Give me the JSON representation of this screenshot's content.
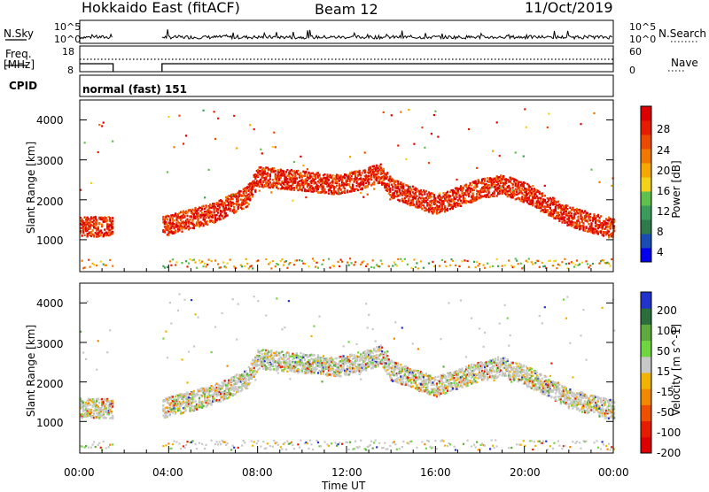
{
  "header": {
    "station": "Hokkaido East (fitACF)",
    "beam": "Beam 12",
    "date": "11/Oct/2019"
  },
  "top_panels": {
    "nsky_label": "N.Sky",
    "nsky_ticks": [
      "10^5",
      "10^0"
    ],
    "nsearch_ticks": [
      "10^5",
      "10^0"
    ],
    "nsearch_label": "N.Search",
    "freq_label_1": "Freq.",
    "freq_label_2": "[MHz]",
    "freq_ticks": [
      "18",
      "8"
    ],
    "nave_ticks": [
      "60",
      "0"
    ],
    "nave_label": "Nave",
    "cpid_label": "CPID",
    "cpid_value": "normal (fast) 151"
  },
  "chart_data": [
    {
      "type": "heatmap",
      "title": "",
      "ylabel": "Slant Range [km]",
      "xlabel": "Time UT",
      "yticks": [
        "4000",
        "3000",
        "2000",
        "1000"
      ],
      "xticks": [
        "00:00",
        "04:00",
        "08:00",
        "12:00",
        "16:00",
        "20:00",
        "00:00"
      ],
      "ylim": [
        200,
        4500
      ],
      "xlim_hours": [
        0,
        24
      ],
      "colorbar": {
        "label": "Power [dB]",
        "ticks": [
          "28",
          "24",
          "20",
          "16",
          "12",
          "8",
          "4"
        ],
        "colors": [
          "#0000ee",
          "#1a4db3",
          "#2f7a4a",
          "#3a9b5a",
          "#5fc04e",
          "#f5d21a",
          "#f5a800",
          "#f07800",
          "#ec4a00",
          "#e61c00",
          "#dd0000"
        ]
      },
      "data_gap_hours": [
        1.5,
        3.7
      ],
      "scatter_bands": [
        {
          "name": "main",
          "start": [
            0.0,
            1400
          ],
          "end": [
            24.0,
            1200
          ],
          "via": [
            [
              4,
              1400
            ],
            [
              8,
              2500
            ],
            [
              9,
              2500
            ],
            [
              11.5,
              2300
            ],
            [
              12.5,
              2600
            ],
            [
              14,
              2500
            ],
            [
              20,
              2100
            ],
            [
              22,
              1500
            ]
          ]
        }
      ]
    },
    {
      "type": "heatmap",
      "title": "",
      "ylabel": "Slant Range [km]",
      "xlabel": "Time UT",
      "yticks": [
        "4000",
        "3000",
        "2000",
        "1000"
      ],
      "xticks": [
        "00:00",
        "04:00",
        "08:00",
        "12:00",
        "16:00",
        "20:00",
        "00:00"
      ],
      "ylim": [
        200,
        4500
      ],
      "xlim_hours": [
        0,
        24
      ],
      "colorbar": {
        "label": "Velocity [m s^-1]",
        "ticks": [
          "200",
          "100",
          "50",
          "15",
          "-15",
          "-50",
          "-100",
          "-200"
        ],
        "colors": [
          "#2233cc",
          "#2a6f3b",
          "#5faa3e",
          "#6fd640",
          "#c8c8c8",
          "#f0b400",
          "#f08800",
          "#ec5000",
          "#e61c00",
          "#dd0000"
        ]
      },
      "data_gap_hours": [
        1.5,
        3.7
      ]
    }
  ],
  "x_axis_title": "Time UT"
}
